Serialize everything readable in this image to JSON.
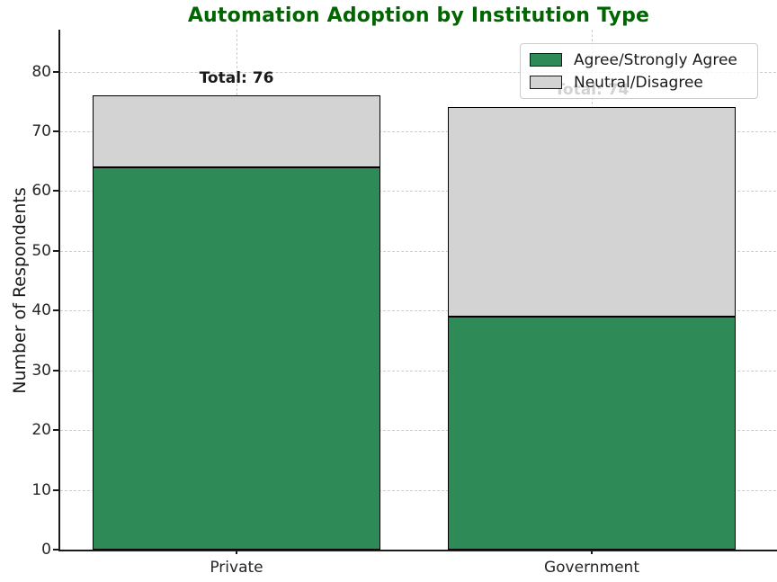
{
  "chart_data": {
    "type": "bar",
    "stacked": true,
    "title": "Automation Adoption by Institution Type",
    "xlabel": "",
    "ylabel": "Number of Respondents",
    "categories": [
      "Private",
      "Government"
    ],
    "series": [
      {
        "name": "Agree/Strongly Agree",
        "color": "#2e8b57",
        "values": [
          64,
          39
        ]
      },
      {
        "name": "Neutral/Disagree",
        "color": "#d3d3d3",
        "values": [
          12,
          35
        ]
      }
    ],
    "totals": [
      76,
      74
    ],
    "total_labels": [
      "Total: 76",
      "Total: 74"
    ],
    "yticks": [
      0,
      10,
      20,
      30,
      40,
      50,
      60,
      70,
      80
    ],
    "ylim": [
      0,
      87
    ],
    "grid": "dashed, both axes",
    "legend_position": "upper right"
  },
  "colors": {
    "title": "#006400",
    "bar_edge": "#000000",
    "grid": "#cccccc",
    "axis_text": "#262626",
    "spine": "#1a1a1a"
  }
}
